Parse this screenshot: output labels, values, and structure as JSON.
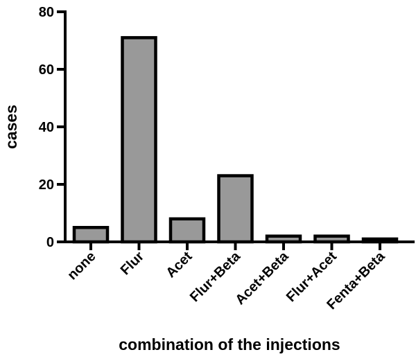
{
  "chart_data": {
    "type": "bar",
    "title": "",
    "xlabel": "combination of the injections",
    "ylabel": "cases",
    "categories": [
      "none",
      "Flur",
      "Acet",
      "Flur+Beta",
      "Acet+Beta",
      "Flur+Acet",
      "Fenta+Beta"
    ],
    "values": [
      5,
      71,
      8,
      23,
      2,
      2,
      1
    ],
    "ylim": [
      0,
      80
    ],
    "yticks": [
      0,
      20,
      40,
      60,
      80
    ],
    "grid": false,
    "legend": "none",
    "colors": {
      "bar_fill": "#999999",
      "bar_stroke": "#000000",
      "axis": "#000000"
    }
  }
}
